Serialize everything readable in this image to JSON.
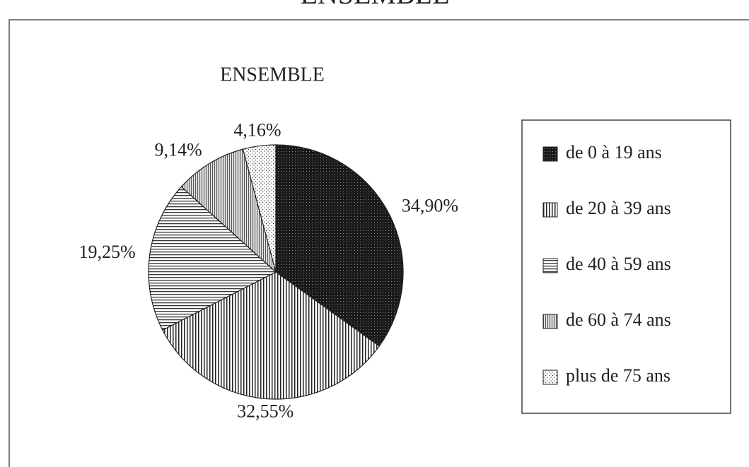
{
  "chart_data": {
    "type": "pie",
    "page_title": "ENSEMBLE",
    "title": "ENSEMBLE",
    "categories": [
      "de 0 à 19 ans",
      "de 20 à 39 ans",
      "de 40 à 59 ans",
      "de 60 à 74 ans",
      "plus de 75 ans"
    ],
    "values": [
      34.9,
      32.55,
      19.25,
      9.14,
      4.16
    ],
    "value_labels": [
      "34,90%",
      "32,55%",
      "19,25%",
      "9,14%",
      "4,16%"
    ],
    "legend": "right"
  }
}
